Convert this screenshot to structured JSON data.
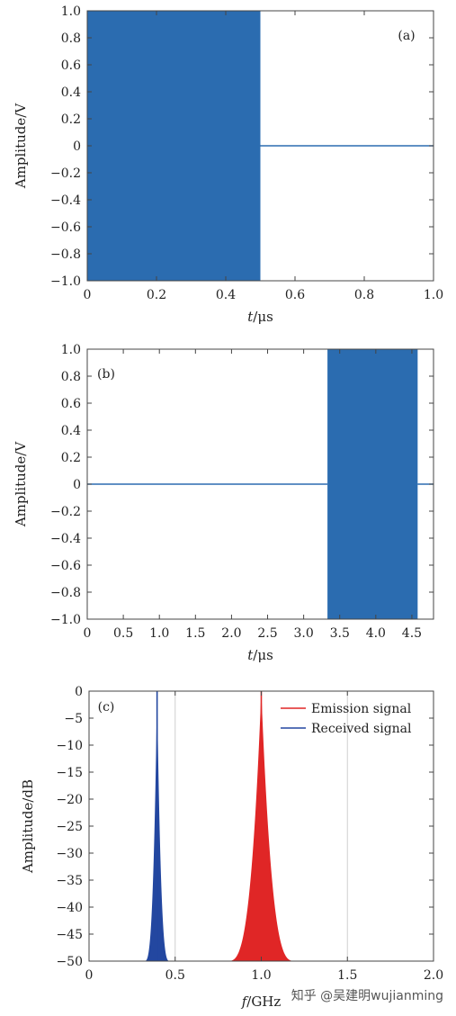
{
  "chart_data": [
    {
      "type": "line",
      "panel_label": "(a)",
      "xlabel_var": "t",
      "xlabel_unit": "/μs",
      "ylabel": "Amplitude/V",
      "xlim": [
        0,
        1.0
      ],
      "ylim": [
        -1.0,
        1.0
      ],
      "x_ticks": [
        "0",
        "0.2",
        "0.4",
        "0.6",
        "0.8",
        "1.0"
      ],
      "x_tick_values": [
        0,
        0.2,
        0.4,
        0.6,
        0.8,
        1.0
      ],
      "y_ticks": [
        "1.0",
        "0.8",
        "0.6",
        "0.4",
        "0.2",
        "0",
        "−0.2",
        "−0.4",
        "−0.6",
        "−0.8",
        "−1.0"
      ],
      "y_tick_values": [
        1.0,
        0.8,
        0.6,
        0.4,
        0.2,
        0,
        -0.2,
        -0.4,
        -0.6,
        -0.8,
        -1.0
      ],
      "series": [
        {
          "color": "#2b6cb0",
          "segments": [
            {
              "kind": "oscillation",
              "x0": 0.0,
              "x1": 0.5,
              "amplitude": 1.0
            },
            {
              "kind": "flat",
              "x0": 0.5,
              "x1": 1.0,
              "value": 0
            }
          ]
        }
      ]
    },
    {
      "type": "line",
      "panel_label": "(b)",
      "xlabel_var": "t",
      "xlabel_unit": "/μs",
      "ylabel": "Amplitude/V",
      "xlim": [
        0,
        4.8
      ],
      "ylim": [
        -1.0,
        1.0
      ],
      "x_ticks": [
        "0",
        "0.5",
        "1.0",
        "1.5",
        "2.0",
        "2.5",
        "3.0",
        "3.5",
        "4.0",
        "4.5"
      ],
      "x_tick_values": [
        0,
        0.5,
        1.0,
        1.5,
        2.0,
        2.5,
        3.0,
        3.5,
        4.0,
        4.5
      ],
      "y_ticks": [
        "1.0",
        "0.8",
        "0.6",
        "0.4",
        "0.2",
        "0",
        "−0.2",
        "−0.4",
        "−0.6",
        "−0.8",
        "−1.0"
      ],
      "y_tick_values": [
        1.0,
        0.8,
        0.6,
        0.4,
        0.2,
        0,
        -0.2,
        -0.4,
        -0.6,
        -0.8,
        -1.0
      ],
      "series": [
        {
          "color": "#2b6cb0",
          "segments": [
            {
              "kind": "flat",
              "x0": 0.0,
              "x1": 3.33,
              "value": 0
            },
            {
              "kind": "oscillation",
              "x0": 3.33,
              "x1": 4.58,
              "amplitude": 1.0
            },
            {
              "kind": "flat",
              "x0": 4.58,
              "x1": 4.8,
              "value": 0
            }
          ]
        }
      ]
    },
    {
      "type": "area",
      "panel_label": "(c)",
      "xlabel_var": "f",
      "xlabel_unit": "/GHz",
      "ylabel": "Amplitude/dB",
      "xlim": [
        0,
        2.0
      ],
      "ylim": [
        -50,
        0
      ],
      "grid": true,
      "legend": "top-right",
      "x_ticks": [
        "0",
        "0.5",
        "1.0",
        "1.5",
        "2.0"
      ],
      "x_tick_values": [
        0,
        0.5,
        1.0,
        1.5,
        2.0
      ],
      "y_ticks": [
        "0",
        "−5",
        "−10",
        "−15",
        "−20",
        "−25",
        "−30",
        "−35",
        "−40",
        "−45",
        "−50"
      ],
      "y_tick_values": [
        0,
        -5,
        -10,
        -15,
        -20,
        -25,
        -30,
        -35,
        -40,
        -45,
        -50
      ],
      "series": [
        {
          "name": "Emission signal",
          "color": "#e02626",
          "center": 1.0,
          "peak": 0,
          "floor": -50,
          "half_width": 0.2
        },
        {
          "name": "Received signal",
          "color": "#2347a0",
          "center": 0.395,
          "peak": 0,
          "floor": -50,
          "half_width": 0.075
        }
      ]
    }
  ],
  "watermark": "知乎 @吴建明wujianming"
}
